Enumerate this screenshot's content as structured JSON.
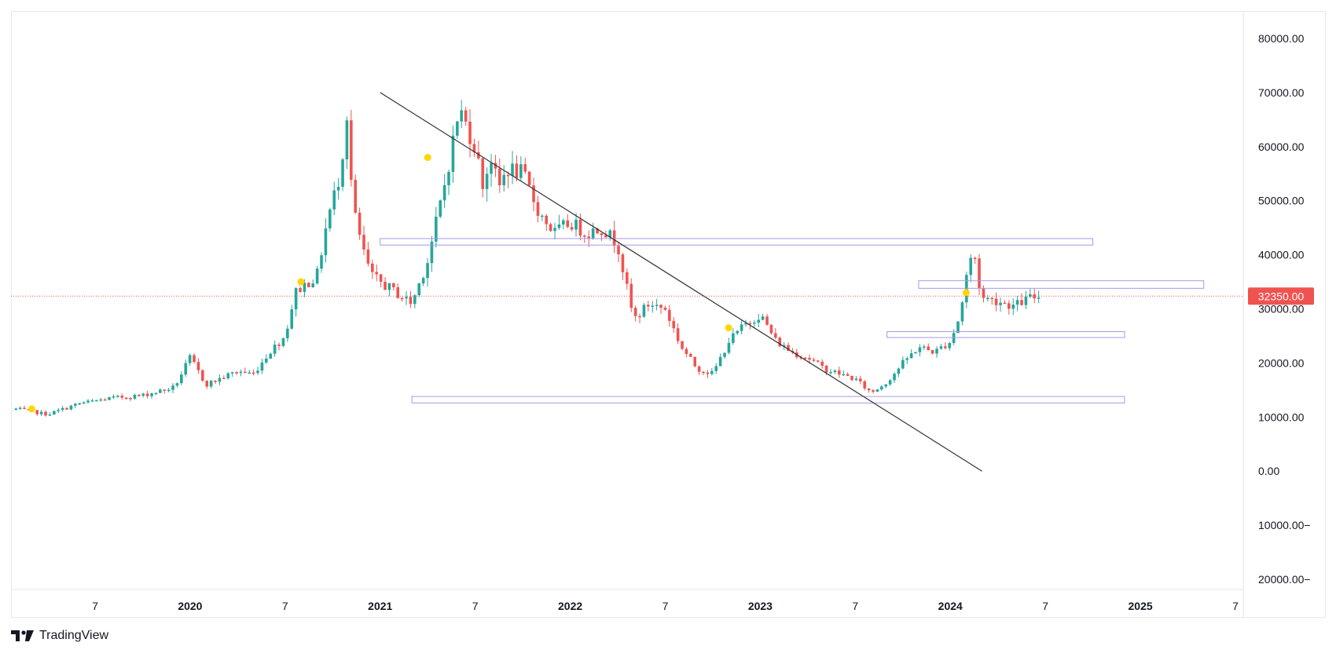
{
  "brand": {
    "name": "TradingView",
    "icon": "tradingview-logo-icon"
  },
  "colors": {
    "up": "#26a69a",
    "down": "#ef5350",
    "box_border": "#a998e6",
    "trendline": "#333333",
    "marker": "#ffd600",
    "last_price_line": "#ef5350",
    "last_price_badge": "#ef5350",
    "axis_text": "#131722"
  },
  "chart_data": {
    "type": "candlestick",
    "price_scale": {
      "ticks": [
        80000,
        70000,
        60000,
        50000,
        40000,
        30000,
        20000,
        10000,
        0,
        -10000,
        -20000
      ],
      "tick_labels": [
        "80000.00",
        "70000.00",
        "60000.00",
        "50000.00",
        "40000.00",
        "30000.00",
        "20000.00",
        "10000.00",
        "0.00",
        "10000.00−",
        "20000.00−"
      ],
      "range": [
        -22000,
        86000
      ]
    },
    "time_scale": {
      "range": [
        "2019-02",
        "2025-08"
      ],
      "ticks": [
        {
          "date": "2019-07",
          "label": "7"
        },
        {
          "date": "2020-01",
          "label": "2020"
        },
        {
          "date": "2020-07",
          "label": "7"
        },
        {
          "date": "2021-01",
          "label": "2021"
        },
        {
          "date": "2021-07",
          "label": "7"
        },
        {
          "date": "2022-01",
          "label": "2022"
        },
        {
          "date": "2022-07",
          "label": "7"
        },
        {
          "date": "2023-01",
          "label": "2023"
        },
        {
          "date": "2023-07",
          "label": "7"
        },
        {
          "date": "2024-01",
          "label": "2024"
        },
        {
          "date": "2024-07",
          "label": "7"
        },
        {
          "date": "2025-01",
          "label": "2025"
        },
        {
          "date": "2025-07",
          "label": "7"
        }
      ]
    },
    "last_price": {
      "value": 32350,
      "label": "32350.00"
    },
    "price_path": [
      {
        "date": "2019-02",
        "price": 11500
      },
      {
        "date": "2019-04",
        "price": 10500
      },
      {
        "date": "2019-06",
        "price": 12500
      },
      {
        "date": "2019-08",
        "price": 13500
      },
      {
        "date": "2019-10",
        "price": 14000
      },
      {
        "date": "2019-12",
        "price": 15500
      },
      {
        "date": "2020-01",
        "price": 21000
      },
      {
        "date": "2020-02",
        "price": 16000
      },
      {
        "date": "2020-04",
        "price": 18500
      },
      {
        "date": "2020-05",
        "price": 18000
      },
      {
        "date": "2020-06",
        "price": 22000
      },
      {
        "date": "2020-07",
        "price": 25000
      },
      {
        "date": "2020-07-20",
        "price": 33000
      },
      {
        "date": "2020-08",
        "price": 34000
      },
      {
        "date": "2020-09",
        "price": 36000
      },
      {
        "date": "2020-09-20",
        "price": 46000
      },
      {
        "date": "2020-10-15",
        "price": 55000
      },
      {
        "date": "2020-10-28",
        "price": 66000
      },
      {
        "date": "2020-11",
        "price": 58000
      },
      {
        "date": "2020-11-15",
        "price": 46000
      },
      {
        "date": "2020-12",
        "price": 40000
      },
      {
        "date": "2020-12-15",
        "price": 36000
      },
      {
        "date": "2021-01",
        "price": 35000
      },
      {
        "date": "2021-02",
        "price": 33000
      },
      {
        "date": "2021-03",
        "price": 31000
      },
      {
        "date": "2021-04",
        "price": 39000
      },
      {
        "date": "2021-05",
        "price": 52000
      },
      {
        "date": "2021-06",
        "price": 67000
      },
      {
        "date": "2021-07",
        "price": 60000
      },
      {
        "date": "2021-07-15",
        "price": 53000
      },
      {
        "date": "2021-08",
        "price": 58000
      },
      {
        "date": "2021-08-15",
        "price": 52000
      },
      {
        "date": "2021-09",
        "price": 56000
      },
      {
        "date": "2021-10",
        "price": 55000
      },
      {
        "date": "2021-11",
        "price": 48000
      },
      {
        "date": "2021-12",
        "price": 44000
      },
      {
        "date": "2022-01",
        "price": 46000
      },
      {
        "date": "2022-02",
        "price": 44000
      },
      {
        "date": "2022-03",
        "price": 45000
      },
      {
        "date": "2022-04",
        "price": 42000
      },
      {
        "date": "2022-04-20",
        "price": 33000
      },
      {
        "date": "2022-05",
        "price": 28000
      },
      {
        "date": "2022-06",
        "price": 31000
      },
      {
        "date": "2022-07",
        "price": 30000
      },
      {
        "date": "2022-08",
        "price": 23000
      },
      {
        "date": "2022-09",
        "price": 19000
      },
      {
        "date": "2022-10",
        "price": 18000
      },
      {
        "date": "2022-11",
        "price": 24000
      },
      {
        "date": "2022-12",
        "price": 27000
      },
      {
        "date": "2023-01",
        "price": 29000
      },
      {
        "date": "2023-02",
        "price": 24000
      },
      {
        "date": "2023-03",
        "price": 22000
      },
      {
        "date": "2023-04",
        "price": 21000
      },
      {
        "date": "2023-05",
        "price": 19000
      },
      {
        "date": "2023-06",
        "price": 18000
      },
      {
        "date": "2023-07",
        "price": 17000
      },
      {
        "date": "2023-08",
        "price": 14500
      },
      {
        "date": "2023-09",
        "price": 16500
      },
      {
        "date": "2023-10",
        "price": 20000
      },
      {
        "date": "2023-11",
        "price": 23000
      },
      {
        "date": "2023-12",
        "price": 22000
      },
      {
        "date": "2024-01",
        "price": 24000
      },
      {
        "date": "2024-01-20",
        "price": 29000
      },
      {
        "date": "2024-02",
        "price": 36000
      },
      {
        "date": "2024-02-15",
        "price": 41000
      },
      {
        "date": "2024-02-28",
        "price": 33000
      },
      {
        "date": "2024-03",
        "price": 32000
      },
      {
        "date": "2024-04",
        "price": 31500
      },
      {
        "date": "2024-05",
        "price": 30500
      },
      {
        "date": "2024-06",
        "price": 32000
      },
      {
        "date": "2024-06-20",
        "price": 32350
      }
    ],
    "trendline": {
      "from": {
        "date": "2021-01",
        "price": 70000
      },
      "to": {
        "date": "2024-03",
        "price": 0
      }
    },
    "zones": [
      {
        "from": "2021-01",
        "to": "2024-10",
        "low": 41800,
        "high": 43000
      },
      {
        "from": "2023-11",
        "to": "2025-05",
        "low": 33800,
        "high": 35200
      },
      {
        "from": "2023-09",
        "to": "2024-12",
        "low": 24700,
        "high": 25800
      },
      {
        "from": "2021-03",
        "to": "2024-12",
        "low": 12600,
        "high": 13800
      }
    ],
    "markers": [
      {
        "date": "2019-03",
        "price": 11500
      },
      {
        "date": "2020-08",
        "price": 35000
      },
      {
        "date": "2021-04",
        "price": 58000
      },
      {
        "date": "2022-11",
        "price": 26500
      },
      {
        "date": "2024-02",
        "price": 33000
      }
    ]
  }
}
